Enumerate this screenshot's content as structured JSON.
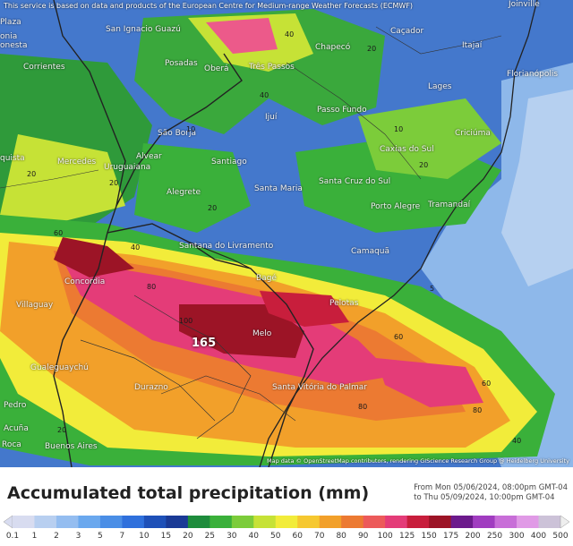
{
  "disclaimer": "This service is based on data and products of the European Centre for Medium-range Weather Forecasts (ECMWF)",
  "attribution": "Map data © OpenStreetMap contributors, rendering GIScience Research Group @ Heidelberg University",
  "legend": {
    "title": "Accumulated total precipitation (mm)",
    "period_from": "From Mon 05/06/2024, 08:00pm GMT-04",
    "period_to": "to Thu 05/09/2024, 10:00pm GMT-04",
    "ticks": [
      "0.1",
      "1",
      "2",
      "3",
      "5",
      "7",
      "10",
      "15",
      "20",
      "25",
      "30",
      "40",
      "50",
      "60",
      "70",
      "80",
      "90",
      "100",
      "125",
      "150",
      "175",
      "200",
      "250",
      "300",
      "400",
      "500"
    ],
    "colors": [
      "#d8dcf0",
      "#b8cff0",
      "#94bdf0",
      "#6aa8ee",
      "#4a8ee6",
      "#2f70dc",
      "#1e50b8",
      "#1a3a96",
      "#1e8c3c",
      "#3ab03a",
      "#7ccc3a",
      "#c6e236",
      "#f2ec3a",
      "#f6c830",
      "#f2a02a",
      "#ec7a32",
      "#ec5a5a",
      "#e43c78",
      "#c81e3c",
      "#9c1426",
      "#6c1a8c",
      "#a03cc0",
      "#c86ed8",
      "#e09ae6",
      "#ccc2d8",
      "#eeeeee"
    ]
  },
  "map": {
    "peak_value": "165",
    "cities": [
      "Joinville",
      "San Ignacio Guazú",
      "Chapecó",
      "Caçador",
      "Itajaí",
      "Corrientes",
      "Posadas",
      "Oberá",
      "Três Passos",
      "Florianópolis",
      "Lages",
      "Ijuí",
      "Passo Fundo",
      "São Borja",
      "Criciúma",
      "Caxias do Sul",
      "Mercedes",
      "Alvear",
      "Santiago",
      "Uruguaiana",
      "Alegrete",
      "Santa Maria",
      "Santa Cruz do Sul",
      "Porto Alegre",
      "Tramandaí",
      "Santana do Livramento",
      "Camaquã",
      "Concordia",
      "Bagé",
      "Pelotas",
      "Villaguay",
      "Melo",
      "Gualeguaychú",
      "Durazno",
      "Santa Vitória do Palmar",
      "Pedro",
      "Buenos Aires",
      "Acuña",
      "Roca",
      "onia",
      "onesta",
      "quista",
      "Plaza"
    ],
    "contours": [
      "5",
      "10",
      "20",
      "40",
      "60",
      "80",
      "100"
    ]
  }
}
